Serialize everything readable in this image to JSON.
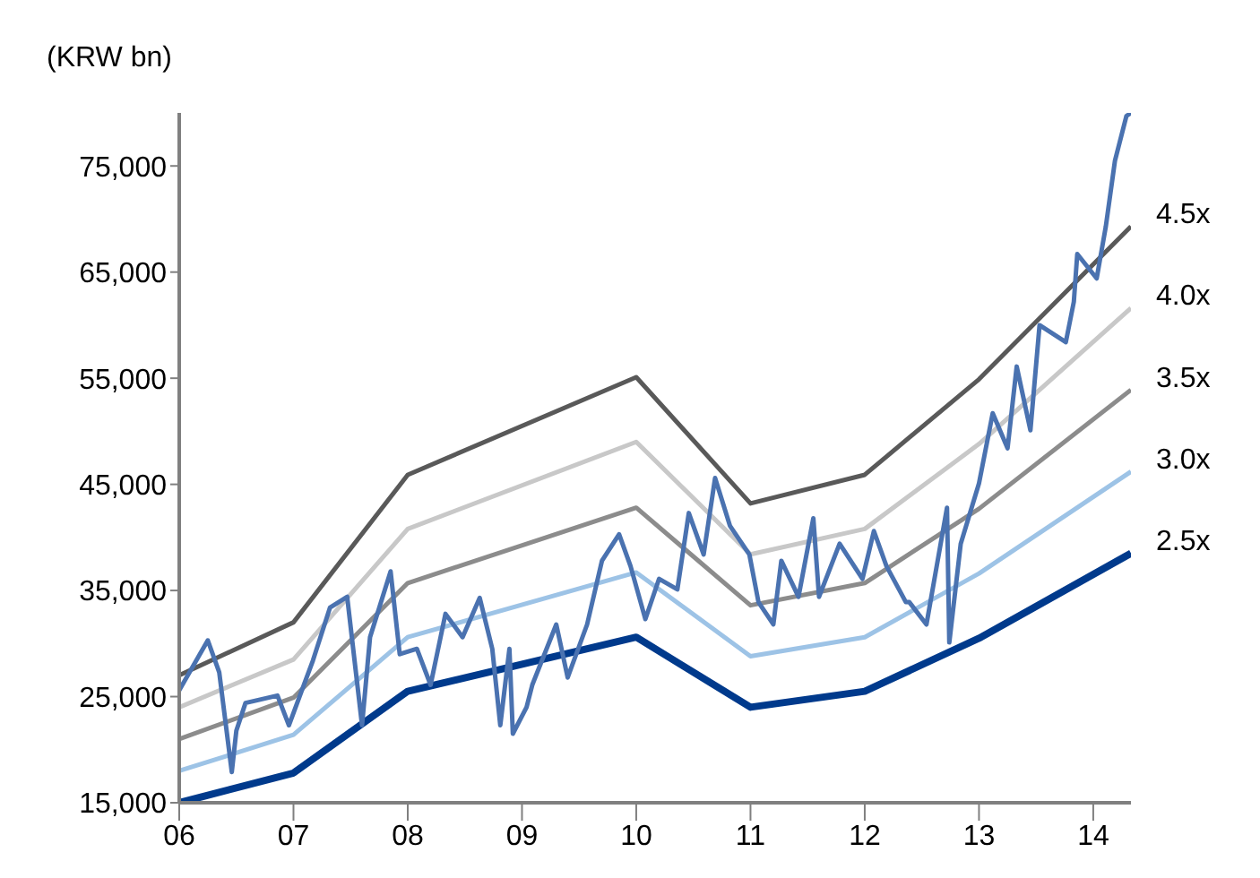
{
  "chart_data": {
    "type": "line",
    "ylabel": "(KRW bn)",
    "xlim": [
      6,
      14.33
    ],
    "ylim": [
      15000,
      80000
    ],
    "xticks": [
      {
        "value": 6,
        "label": "06"
      },
      {
        "value": 7,
        "label": "07"
      },
      {
        "value": 8,
        "label": "08"
      },
      {
        "value": 9,
        "label": "09"
      },
      {
        "value": 10,
        "label": "10"
      },
      {
        "value": 11,
        "label": "11"
      },
      {
        "value": 12,
        "label": "12"
      },
      {
        "value": 13,
        "label": "13"
      },
      {
        "value": 14,
        "label": "14"
      }
    ],
    "yticks": [
      {
        "value": 15000,
        "label": "15,000"
      },
      {
        "value": 25000,
        "label": "25,000"
      },
      {
        "value": 35000,
        "label": "35,000"
      },
      {
        "value": 45000,
        "label": "45,000"
      },
      {
        "value": 55000,
        "label": "55,000"
      },
      {
        "value": 65000,
        "label": "65,000"
      },
      {
        "value": 75000,
        "label": "75,000"
      }
    ],
    "legend": false,
    "marker": "none",
    "line_style": "solid",
    "series": [
      {
        "name": "4.5x",
        "color": "#595959",
        "x": [
          6,
          7,
          8,
          10,
          11,
          12,
          13,
          14.33
        ],
        "values": [
          27000,
          32000,
          45900,
          55100,
          43200,
          45900,
          54900,
          69300
        ]
      },
      {
        "name": "4.0x",
        "color": "#c8c8c8",
        "x": [
          6,
          7,
          8,
          10,
          11,
          12,
          13,
          14.33
        ],
        "values": [
          24000,
          28500,
          40800,
          49000,
          38400,
          40800,
          48800,
          61600
        ]
      },
      {
        "name": "3.5x",
        "color": "#8c8c8c",
        "x": [
          6,
          7,
          8,
          10,
          11,
          12,
          13,
          14.33
        ],
        "values": [
          21000,
          24900,
          35700,
          42800,
          33600,
          35700,
          42700,
          53900
        ]
      },
      {
        "name": "3.0x",
        "color": "#9dc3e6",
        "x": [
          6,
          7,
          8,
          10,
          11,
          12,
          13,
          14.33
        ],
        "values": [
          18000,
          21400,
          30600,
          36700,
          28800,
          30600,
          36600,
          46200
        ]
      },
      {
        "name": "2.5x",
        "color": "#003a8c",
        "x": [
          6,
          7,
          8,
          10,
          11,
          12,
          13,
          14.33
        ],
        "values": [
          15000,
          17800,
          25500,
          30600,
          24000,
          25500,
          30500,
          38500
        ]
      },
      {
        "color": "#4a72b0",
        "x": [
          6,
          6.25,
          6.35,
          6.46,
          6.5,
          6.58,
          6.86,
          6.96,
          7.17,
          7.32,
          7.47,
          7.6,
          7.67,
          7.85,
          7.93,
          8.08,
          8.2,
          8.33,
          8.48,
          8.63,
          8.74,
          8.81,
          8.89,
          8.92,
          9.04,
          9.09,
          9.3,
          9.4,
          9.57,
          9.7,
          9.85,
          9.95,
          10.08,
          10.2,
          10.36,
          10.46,
          10.59,
          10.69,
          10.82,
          10.99,
          11.07,
          11.2,
          11.27,
          11.42,
          11.55,
          11.6,
          11.78,
          11.98,
          12.08,
          12.19,
          12.36,
          12.39,
          12.54,
          12.72,
          12.74,
          12.84,
          13.0,
          13.12,
          13.25,
          13.33,
          13.45,
          13.53,
          13.76,
          13.83,
          13.86,
          14.03,
          14.11,
          14.19,
          14.29,
          14.33
        ],
        "values": [
          25600,
          30300,
          27300,
          17900,
          21800,
          24400,
          25100,
          22300,
          28400,
          33400,
          34400,
          22300,
          30600,
          36800,
          29000,
          29500,
          26100,
          32800,
          30600,
          34300,
          29500,
          22300,
          29500,
          21500,
          24000,
          26100,
          31800,
          26800,
          31800,
          37800,
          40300,
          37300,
          32300,
          36100,
          35100,
          42300,
          38400,
          45600,
          41100,
          38400,
          33900,
          31800,
          37800,
          34400,
          41800,
          34400,
          39400,
          36100,
          40600,
          37300,
          33900,
          33900,
          31800,
          42800,
          30100,
          39400,
          45100,
          51700,
          48400,
          56100,
          50100,
          60000,
          58400,
          62200,
          66700,
          64400,
          69300,
          75500,
          79700,
          80000
        ]
      }
    ]
  }
}
